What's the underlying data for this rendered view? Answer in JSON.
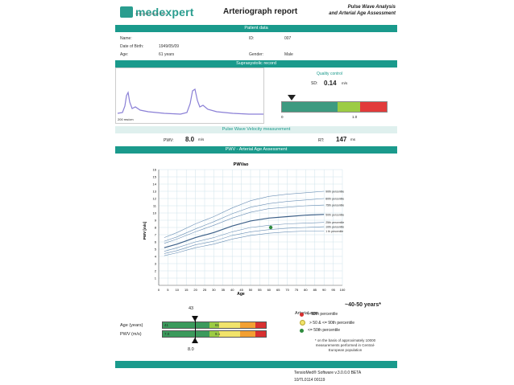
{
  "header": {
    "logo_text": "medexpert",
    "logo_tagline": "cutting-edge research - Heart",
    "title": "Arteriograph report",
    "subtitle_line1": "Pulse Wave Analysis",
    "subtitle_line2": "and Arterial Age Assessment"
  },
  "patient": {
    "section_title": "Patient data",
    "name_label": "Name:",
    "name_value": "",
    "id_label": "ID:",
    "id_value": "007",
    "dob_label": "Date of Birth:",
    "dob_value": "1949/05/09",
    "age_label": "Age:",
    "age_value": "61 years",
    "gender_label": "Gender:",
    "gender_value": "Male"
  },
  "suprasystolic": {
    "section_title": "Suprasystolic record",
    "scale_label": "200 ms/cm"
  },
  "quality": {
    "title": "Quality control",
    "sd_label": "SD:",
    "sd_value": "0.14",
    "sd_unit": "m/s",
    "scale_min": "0",
    "scale_max": "1.0",
    "marker_value": 0.14
  },
  "pwv_measure": {
    "section_title": "Pulse Wave Velocity measurement",
    "pwv_label": "PWV:",
    "pwv_value": "8.0",
    "pwv_unit": "m/s",
    "rt_label": "RT:",
    "rt_value": "147",
    "rt_unit": "ms"
  },
  "assessment": {
    "section_title": "PWV - Arterial Age Assessment"
  },
  "chart_data": {
    "type": "line",
    "title": "PWVao",
    "xlabel": "Age",
    "ylabel": "PWV [m/s]",
    "xlim": [
      0,
      100
    ],
    "ylim": [
      0,
      16
    ],
    "x_ticks": [
      "0",
      "5",
      "10",
      "15",
      "20",
      "25",
      "30",
      "35",
      "40",
      "45",
      "50",
      "55",
      "60",
      "65",
      "70",
      "75",
      "80",
      "85",
      "90",
      "95",
      "100"
    ],
    "y_ticks": [
      "1",
      "2",
      "3",
      "4",
      "5",
      "6",
      "7",
      "8",
      "9",
      "10",
      "11",
      "12",
      "13",
      "14",
      "15",
      "16"
    ],
    "grid": true,
    "x": [
      3,
      10,
      20,
      30,
      40,
      50,
      60,
      70,
      80,
      90
    ],
    "series": [
      {
        "name": "90th percentile",
        "values": [
          6.6,
          7.3,
          8.5,
          9.5,
          10.7,
          11.7,
          12.3,
          12.6,
          12.8,
          13.0
        ]
      },
      {
        "name": "80th percentile",
        "values": [
          6.1,
          6.7,
          7.8,
          8.8,
          9.9,
          10.8,
          11.3,
          11.6,
          11.8,
          12.0
        ]
      },
      {
        "name": "75th percentile",
        "values": [
          5.8,
          6.4,
          7.4,
          8.3,
          9.3,
          10.1,
          10.6,
          10.8,
          11.0,
          11.1
        ]
      },
      {
        "name": "50th percentile",
        "values": [
          5.2,
          5.7,
          6.6,
          7.3,
          8.2,
          8.9,
          9.3,
          9.5,
          9.7,
          9.8
        ]
      },
      {
        "name": "25th percentile",
        "values": [
          4.7,
          5.2,
          6.0,
          6.6,
          7.4,
          8.0,
          8.3,
          8.5,
          8.6,
          8.7
        ]
      },
      {
        "name": "10th percentile",
        "values": [
          4.4,
          4.8,
          5.6,
          6.1,
          6.9,
          7.4,
          7.7,
          7.9,
          8.0,
          8.1
        ]
      },
      {
        "name": "1 th percentile",
        "values": [
          4.1,
          4.5,
          5.2,
          5.7,
          6.4,
          6.9,
          7.2,
          7.4,
          7.5,
          7.5
        ]
      }
    ],
    "point": {
      "x": 61,
      "y": 8.0
    },
    "colors": {
      "line": "#6b8fb5",
      "median": "#3c5f87",
      "point": "#2e8b3e"
    }
  },
  "age_bar": {
    "age_row_label": "Age (years)",
    "pwv_row_label": "PWV (m/s)",
    "age_left": "41",
    "age_right": "61",
    "pwv_left": "7.0",
    "pwv_right": "9.1",
    "age_marker": "43",
    "pwv_marker": "8.0",
    "right_age_red": "",
    "right_pwv_red": ""
  },
  "legend": {
    "title": "Arterial age:",
    "value": "~40-50 years*",
    "items": [
      {
        "color": "#d83030",
        "label": "> 90th percentile"
      },
      {
        "color": "#f1e36b",
        "label": "> 50 & <= 90th percentile"
      },
      {
        "color": "#2e8b3e",
        "label": "<= 50th percentile"
      }
    ],
    "note_line1": "* on the basis of approximately 10000",
    "note_line2": "measurements performed in Central-",
    "note_line3": "European population"
  },
  "footer": {
    "software": "TensioMed® Software   v.3.0.0.0 BETA",
    "serial": "10/TL0114    00119"
  }
}
